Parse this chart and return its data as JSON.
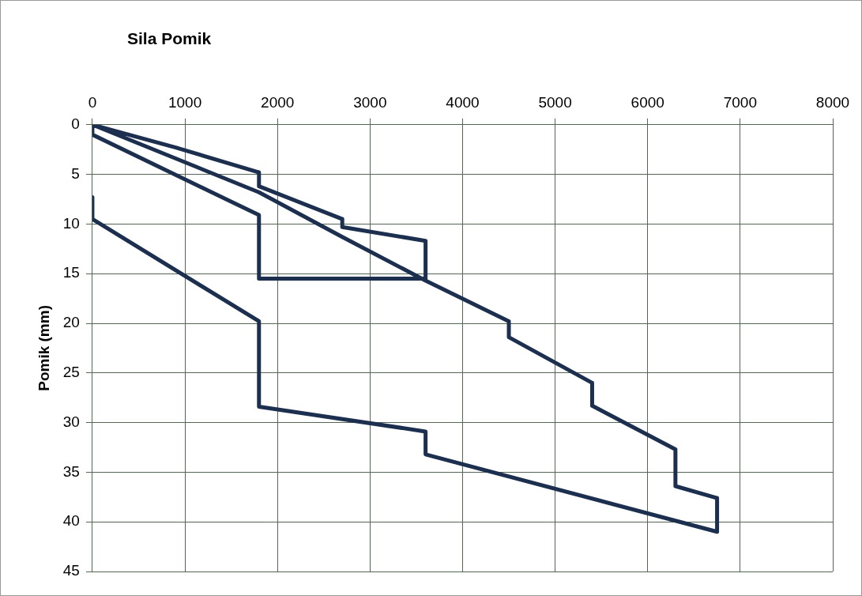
{
  "chart_data": {
    "type": "line",
    "title": "Sila Pomik",
    "ylabel": "Pomik (mm)",
    "series": [
      {
        "color": "#1c2f4f",
        "x": [
          0,
          900,
          1800,
          1800,
          2700,
          2700,
          3600,
          3600,
          1800,
          1800,
          0,
          0,
          1800,
          2700,
          3600,
          4500,
          4500,
          5400,
          5400,
          6300,
          6300,
          6750,
          6750,
          3600,
          3600,
          1800,
          1800,
          0,
          0
        ],
        "values": [
          0,
          2.3,
          4.8,
          6.2,
          9.5,
          10.3,
          11.7,
          15.5,
          15.5,
          9.1,
          1,
          0,
          6.8,
          11.3,
          15.7,
          19.8,
          21.4,
          26,
          28.3,
          32.7,
          36.4,
          37.6,
          41,
          33.2,
          30.9,
          28.4,
          19.8,
          9.5,
          7.3
        ]
      }
    ],
    "xlim": [
      0,
      8000
    ],
    "xticks": [
      0,
      1000,
      2000,
      3000,
      4000,
      5000,
      6000,
      7000,
      8000
    ],
    "ylim": [
      45,
      0
    ],
    "yticks": [
      0,
      5,
      10,
      15,
      20,
      25,
      30,
      35,
      40,
      45
    ],
    "grid": true,
    "legend": false,
    "marker": "none",
    "line_style": "solid"
  }
}
